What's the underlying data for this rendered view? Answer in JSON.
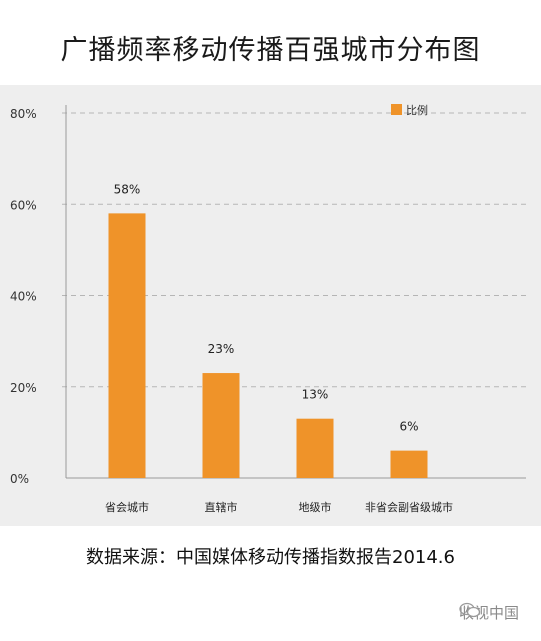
{
  "title": "广播频率移动传播百强城市分布图",
  "source": "数据来源：中国媒体移动传播指数报告2014.6",
  "watermark": "收视中国",
  "colors": {
    "bar": "#ef9329",
    "panel": "#eeeeee",
    "grid": "#b5b5b5"
  },
  "chart_data": {
    "type": "bar",
    "categories": [
      "省会城市",
      "直辖市",
      "地级市",
      "非省会副省级城市"
    ],
    "values": [
      58,
      23,
      13,
      6
    ],
    "value_labels": [
      "58%",
      "23%",
      "13%",
      "6%"
    ],
    "yticks": [
      "0%",
      "20%",
      "40%",
      "60%",
      "80%"
    ],
    "ylim": [
      0,
      80
    ],
    "legend": {
      "label": "比例",
      "placement": "top-right"
    },
    "grid": true
  }
}
